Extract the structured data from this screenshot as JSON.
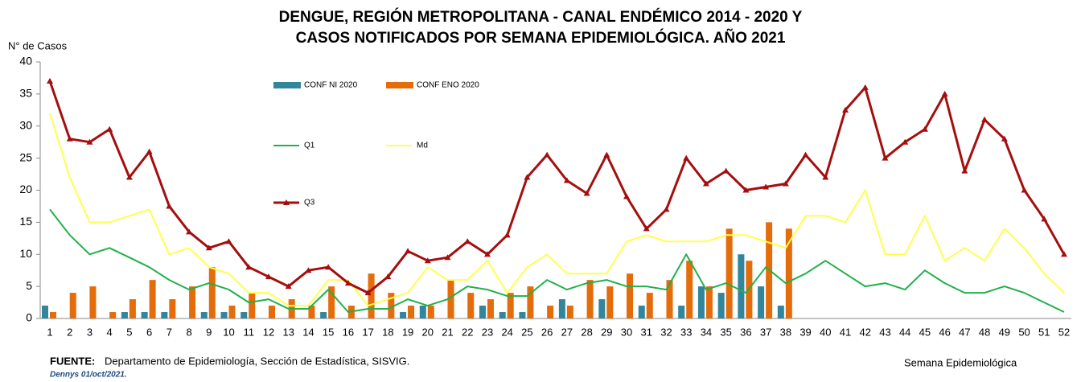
{
  "chart_data": {
    "type": "bar_line",
    "title": [
      "DENGUE, REGIÓN METROPOLITANA - CANAL ENDÉMICO 2014 - 2020 Y",
      "CASOS NOTIFICADOS POR SEMANA EPIDEMIOLÓGICA.  AÑO 2021"
    ],
    "y_label": "N° de Casos",
    "x_label": "Semana Epidemiológica",
    "source_label": "FUENTE:",
    "source": "Departamento de Epidemiología, Sección de Estadística, SISVIG.",
    "author": "Dennys  01/oct/2021.",
    "categories": [
      "1",
      "2",
      "3",
      "4",
      "5",
      "6",
      "7",
      "8",
      "9",
      "10",
      "11",
      "12",
      "13",
      "14",
      "15",
      "16",
      "17",
      "18",
      "19",
      "20",
      "21",
      "22",
      "23",
      "24",
      "25",
      "26",
      "27",
      "28",
      "29",
      "30",
      "31",
      "32",
      "33",
      "34",
      "35",
      "36",
      "37",
      "38",
      "39",
      "40",
      "41",
      "42",
      "43",
      "44",
      "45",
      "46",
      "47",
      "48",
      "49",
      "50",
      "51",
      "52"
    ],
    "ylim": [
      0,
      40
    ],
    "yticks": [
      0,
      5,
      10,
      15,
      20,
      25,
      30,
      35,
      40
    ],
    "grid": false,
    "series": [
      {
        "name": "CONF NI 2020",
        "kind": "bar",
        "color": "#31859c",
        "values": [
          2,
          0,
          0,
          0,
          1,
          1,
          1,
          0,
          1,
          1,
          1,
          0,
          0,
          0,
          1,
          0,
          0,
          0,
          1,
          2,
          0,
          0,
          2,
          1,
          1,
          0,
          3,
          0,
          3,
          0,
          2,
          0,
          2,
          5,
          4,
          10,
          5,
          2,
          null,
          null,
          null,
          null,
          null,
          null,
          null,
          null,
          null,
          null,
          null,
          null,
          null,
          null
        ]
      },
      {
        "name": "CONF ENO 2020",
        "kind": "bar",
        "color": "#e46c0a",
        "values": [
          1,
          4,
          5,
          1,
          3,
          6,
          3,
          5,
          8,
          2,
          4,
          2,
          3,
          2,
          5,
          2,
          7,
          4,
          2,
          2,
          6,
          4,
          3,
          4,
          5,
          2,
          2,
          6,
          5,
          7,
          4,
          6,
          9,
          5,
          14,
          9,
          15,
          14,
          null,
          null,
          null,
          null,
          null,
          null,
          null,
          null,
          null,
          null,
          null,
          null,
          null,
          null
        ]
      },
      {
        "name": "Q1",
        "kind": "line",
        "color": "#22b04b",
        "values": [
          17,
          13,
          10,
          11,
          9.5,
          8,
          6,
          4.5,
          5.5,
          4.5,
          2.5,
          3,
          1.5,
          1.5,
          4.5,
          1,
          1.5,
          1.5,
          3,
          2,
          3,
          5,
          4.5,
          3.5,
          3.5,
          6,
          4.5,
          5.5,
          6,
          5,
          5,
          4.5,
          10,
          4.5,
          5.5,
          4,
          8,
          5.5,
          7,
          9,
          7,
          5,
          5.5,
          4.5,
          7.5,
          5.5,
          4,
          4,
          5,
          4,
          2.5,
          1
        ]
      },
      {
        "name": "Md",
        "kind": "line",
        "color": "#ffff4d",
        "values": [
          32,
          22,
          15,
          15,
          16,
          17,
          10,
          11,
          8,
          7,
          4,
          4,
          2,
          2,
          6,
          6,
          2,
          3,
          4,
          8,
          6,
          6,
          9,
          4,
          8,
          10,
          7,
          7,
          7,
          12,
          13,
          12,
          12,
          12,
          13,
          13,
          12,
          11,
          16,
          16,
          15,
          20,
          10,
          10,
          16,
          9,
          11,
          9,
          14,
          11,
          7,
          4
        ]
      },
      {
        "name": "Q3",
        "kind": "line",
        "markers": true,
        "color": "#a50e0e",
        "values": [
          37,
          28,
          27.5,
          29.5,
          22,
          26,
          17.5,
          13.5,
          11,
          12,
          8,
          6.5,
          5,
          7.5,
          8,
          5.5,
          4,
          6.5,
          10.5,
          9,
          9.5,
          12,
          10,
          13,
          22,
          25.5,
          21.5,
          19.5,
          25.5,
          19,
          14,
          17,
          25,
          21,
          23,
          20,
          20.5,
          21,
          25.5,
          22,
          32.5,
          36,
          25,
          27.5,
          29.5,
          35,
          23,
          31,
          28,
          20,
          15.5,
          10
        ]
      }
    ]
  }
}
